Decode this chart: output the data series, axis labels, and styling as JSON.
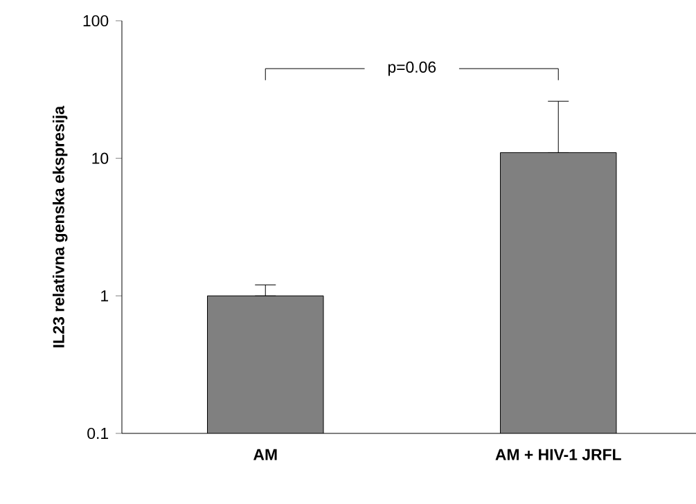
{
  "chart_data": {
    "type": "bar",
    "ylabel": "IL23  relativna genska ekspresija",
    "categories": [
      "AM",
      "AM + HIV-1 JRFL"
    ],
    "values": [
      1,
      11
    ],
    "color": "#808080",
    "errors": [
      [
        1,
        1.2
      ],
      [
        11,
        26
      ]
    ],
    "log": true,
    "ylim": [
      0.1,
      100
    ],
    "yticks": [
      0.1,
      1,
      10,
      100
    ],
    "annotations": [
      "p=0.06"
    ]
  }
}
